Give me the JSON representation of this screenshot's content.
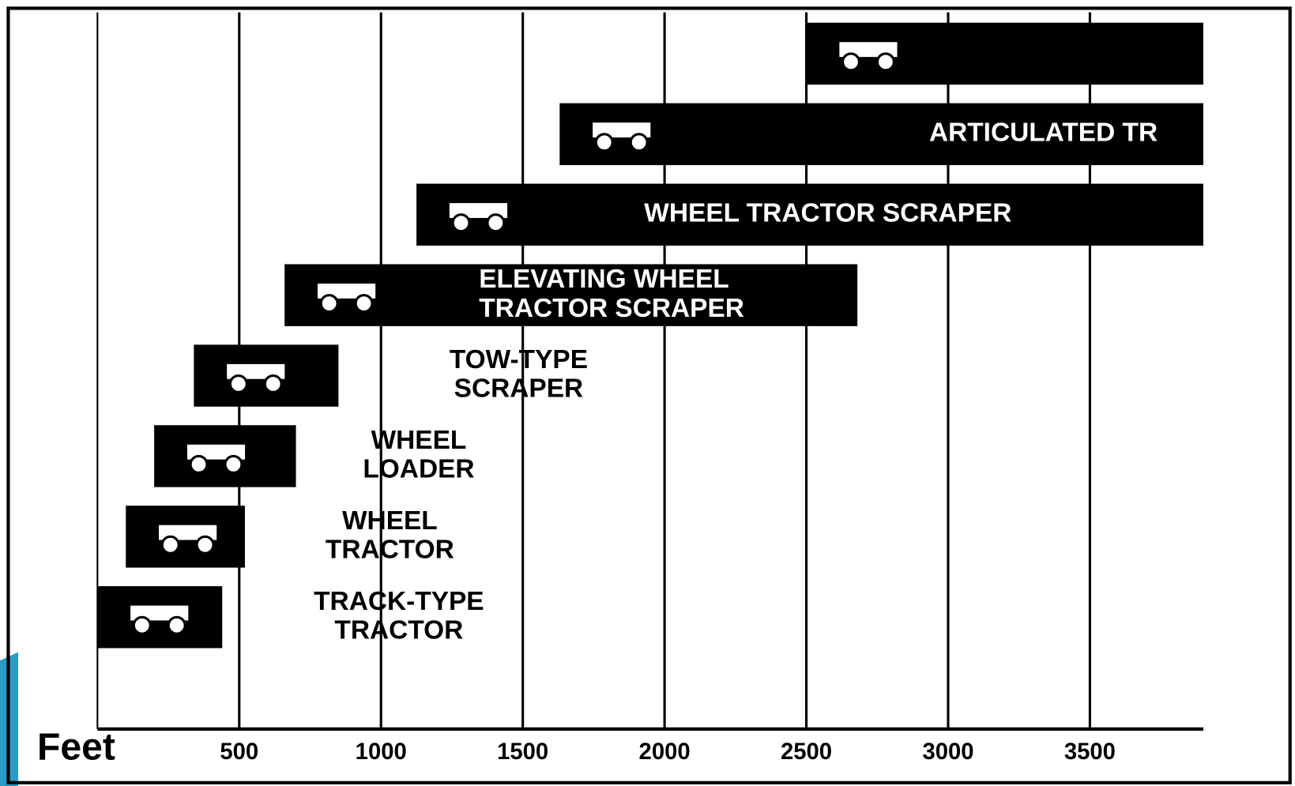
{
  "chart_data": {
    "type": "range",
    "xlabel": "Feet",
    "categories": [
      [
        "TRACK-TYPE",
        "TRACTOR"
      ],
      [
        "WHEEL",
        "TRACTOR"
      ],
      [
        "WHEEL",
        "LOADER"
      ],
      [
        "TOW-TYPE",
        "SCRAPER"
      ],
      [
        "ELEVATING WHEEL",
        "TRACTOR SCRAPER"
      ],
      [
        "WHEEL TRACTOR SCRAPER"
      ],
      [
        "ARTICULATED TR"
      ],
      null
    ],
    "values": [
      [
        0,
        440
      ],
      [
        100,
        520
      ],
      [
        200,
        700
      ],
      [
        340,
        850
      ],
      [
        660,
        2680
      ],
      [
        1125,
        3900
      ],
      [
        1630,
        3900
      ],
      [
        2500,
        3900
      ]
    ],
    "color": "#000000",
    "xlim": [
      0,
      3900
    ],
    "xticks": [
      500,
      1000,
      1500,
      2000,
      2500,
      3000,
      3500
    ],
    "grid": true
  }
}
